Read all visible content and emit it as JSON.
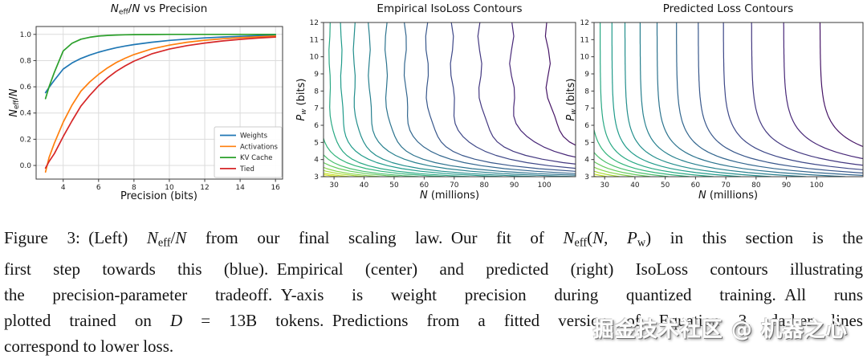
{
  "chart_data": [
    {
      "type": "line",
      "title": "N_eff/N vs Precision",
      "xlabel": "Precision (bits)",
      "ylabel": "N_eff/N",
      "xlim": [
        2.47,
        16.4
      ],
      "ylim": [
        -0.104,
        1.06
      ],
      "xticks": [
        4,
        6,
        8,
        10,
        12,
        14,
        16
      ],
      "yticks": [
        "0.0",
        "0.2",
        "0.4",
        "0.6",
        "0.8",
        "1.0"
      ],
      "grid": true,
      "legend_position": "lower right",
      "x": [
        3,
        3.2,
        3.5,
        4,
        4.5,
        5,
        5.5,
        6,
        6.5,
        7,
        7.5,
        8,
        9,
        10,
        11,
        12,
        13,
        14,
        15,
        16
      ],
      "series": [
        {
          "name": "Weights",
          "color": "#1f77b4",
          "values": [
            0.555,
            0.595,
            0.65,
            0.735,
            0.782,
            0.816,
            0.842,
            0.864,
            0.882,
            0.898,
            0.911,
            0.922,
            0.94,
            0.954,
            0.964,
            0.973,
            0.98,
            0.985,
            0.99,
            0.993
          ]
        },
        {
          "name": "Activations",
          "color": "#ff7f0e",
          "values": [
            -0.05,
            0.06,
            0.17,
            0.33,
            0.46,
            0.567,
            0.637,
            0.695,
            0.744,
            0.785,
            0.818,
            0.846,
            0.889,
            0.918,
            0.94,
            0.955,
            0.966,
            0.975,
            0.981,
            0.987
          ]
        },
        {
          "name": "KV Cache",
          "color": "#2ca02c",
          "values": [
            0.51,
            0.6,
            0.71,
            0.873,
            0.932,
            0.963,
            0.978,
            0.987,
            0.992,
            0.995,
            0.997,
            0.998,
            0.999,
            1.0,
            1.0,
            1.0,
            1.0,
            1.0,
            1.0,
            1.0
          ]
        },
        {
          "name": "Tied",
          "color": "#d62728",
          "values": [
            -0.02,
            0.03,
            0.09,
            0.22,
            0.34,
            0.453,
            0.535,
            0.608,
            0.667,
            0.718,
            0.76,
            0.796,
            0.851,
            0.888,
            0.914,
            0.934,
            0.95,
            0.962,
            0.972,
            0.98
          ]
        }
      ]
    },
    {
      "type": "contour",
      "title": "Empirical IsoLoss Contours",
      "xlabel": "N (millions)",
      "ylabel": "P_w (bits)",
      "xlim": [
        26.5,
        110.4
      ],
      "ylim": [
        3,
        12
      ],
      "xticks": [
        30,
        40,
        50,
        60,
        70,
        80,
        90,
        100
      ],
      "yticks": [
        3,
        4,
        5,
        6,
        7,
        8,
        9,
        10,
        11,
        12
      ],
      "grid": false,
      "style": "empirical-piecewise",
      "colormap": "viridis",
      "note": "darker lines correspond to lower loss",
      "levels_Neff_millions": [
        10.4,
        11.8,
        13.3,
        15.1,
        17.2,
        19.5,
        22.1,
        25.1,
        28.5,
        32.4,
        36.7,
        41.7,
        47.3,
        53.7,
        60.9,
        69.2,
        78.5,
        89.1,
        101.1
      ]
    },
    {
      "type": "contour",
      "title": "Predicted Loss Contours",
      "xlabel": "N (millions)",
      "ylabel": "P_w (bits)",
      "xlim": [
        26.5,
        115.3
      ],
      "ylim": [
        3,
        12
      ],
      "xticks": [
        30,
        40,
        50,
        60,
        70,
        80,
        90,
        100
      ],
      "yticks": [
        3,
        4,
        5,
        6,
        7,
        8,
        9,
        10,
        11,
        12
      ],
      "grid": false,
      "style": "smooth",
      "colormap": "viridis",
      "note": "darker lines correspond to lower loss",
      "levels_Neff_millions": [
        10.4,
        11.8,
        13.3,
        15.1,
        17.2,
        19.5,
        22.1,
        25.1,
        28.5,
        32.4,
        36.7,
        41.7,
        47.3,
        53.7,
        60.9,
        69.2,
        78.5,
        89.1,
        101.1
      ]
    }
  ],
  "figure": {
    "left_title_segments": [
      {
        "t": "N",
        "s": "i"
      },
      {
        "t": "eff",
        "s": "sub"
      },
      {
        "t": "/",
        "s": "r"
      },
      {
        "t": "N",
        "s": "i"
      },
      {
        "t": " vs Precision",
        "s": "r"
      }
    ],
    "left_ylabel_segments": [
      {
        "t": "N",
        "s": "i"
      },
      {
        "t": "eff",
        "s": "sub"
      },
      {
        "t": "/",
        "s": "r"
      },
      {
        "t": "N",
        "s": "i"
      }
    ],
    "pw_ylabel_segments": [
      {
        "t": "P",
        "s": "i"
      },
      {
        "t": "w",
        "s": "subi"
      },
      {
        "t": " (bits)",
        "s": "r"
      }
    ],
    "n_xlabel_segments": [
      {
        "t": "N",
        "s": "i"
      },
      {
        "t": " (millions)",
        "s": "r"
      }
    ],
    "left_xlabel": "Precision (bits)",
    "center_title": "Empirical IsoLoss Contours",
    "right_title": "Predicted Loss Contours",
    "legend": [
      "Weights",
      "Activations",
      "KV Cache",
      "Tied"
    ],
    "viridis_stops": [
      "#440154",
      "#482878",
      "#3e4989",
      "#31688e",
      "#26828e",
      "#1f9e89",
      "#35b779",
      "#6ece58",
      "#b5de2b",
      "#dde318",
      "#fde725"
    ]
  },
  "caption": {
    "label": "Figure 3:",
    "lines": [
      [
        {
          "t": "Figure 3: (Left) ",
          "s": "r"
        },
        {
          "t": "N",
          "s": "i"
        },
        {
          "t": "eff",
          "s": "sub"
        },
        {
          "t": "/",
          "s": "r"
        },
        {
          "t": "N",
          "s": "i"
        },
        {
          "t": " from our final scaling law. Our fit of ",
          "s": "r"
        },
        {
          "t": "N",
          "s": "i"
        },
        {
          "t": "eff",
          "s": "sub"
        },
        {
          "t": "(",
          "s": "r"
        },
        {
          "t": "N",
          "s": "i"
        },
        {
          "t": ", ",
          "s": "r"
        },
        {
          "t": "P",
          "s": "i"
        },
        {
          "t": "w",
          "s": "sub"
        },
        {
          "t": ") in this section is the",
          "s": "r"
        }
      ],
      [
        {
          "t": "first step towards this (blue). Empirical (center) and predicted (right) IsoLoss contours illustrating",
          "s": "r"
        }
      ],
      [
        {
          "t": "the precision-parameter tradeoff. Y-axis is weight precision during quantized training. All runs",
          "s": "r"
        }
      ],
      [
        {
          "t": "plotted trained on ",
          "s": "r"
        },
        {
          "t": "D",
          "s": "i"
        },
        {
          "t": " = 13B tokens. Predictions from a fitted version of Equation 3, darker lines",
          "s": "r"
        }
      ],
      [
        {
          "t": "correspond to lower loss.",
          "s": "r"
        }
      ]
    ]
  },
  "watermark": {
    "text": "掘金技术社区 @ 机器之心"
  }
}
